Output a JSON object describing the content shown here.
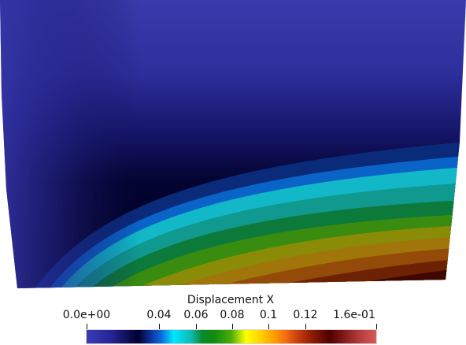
{
  "colorbar": {
    "title": "Displacement X",
    "min_label": "0.0e+00",
    "max_label": "1.6e-01",
    "ticks": [
      "0.04",
      "0.06",
      "0.08",
      "0.1",
      "0.12"
    ],
    "range": [
      0.0,
      0.16
    ]
  },
  "colormap": {
    "low": "#3b3bb5",
    "dark": "#000033",
    "cyan": "#00e6ff",
    "green": "#0a8a2a",
    "yellow": "#ffff00",
    "orange": "#ff9a00",
    "dark_red": "#500000",
    "high": "#d85a5a"
  }
}
